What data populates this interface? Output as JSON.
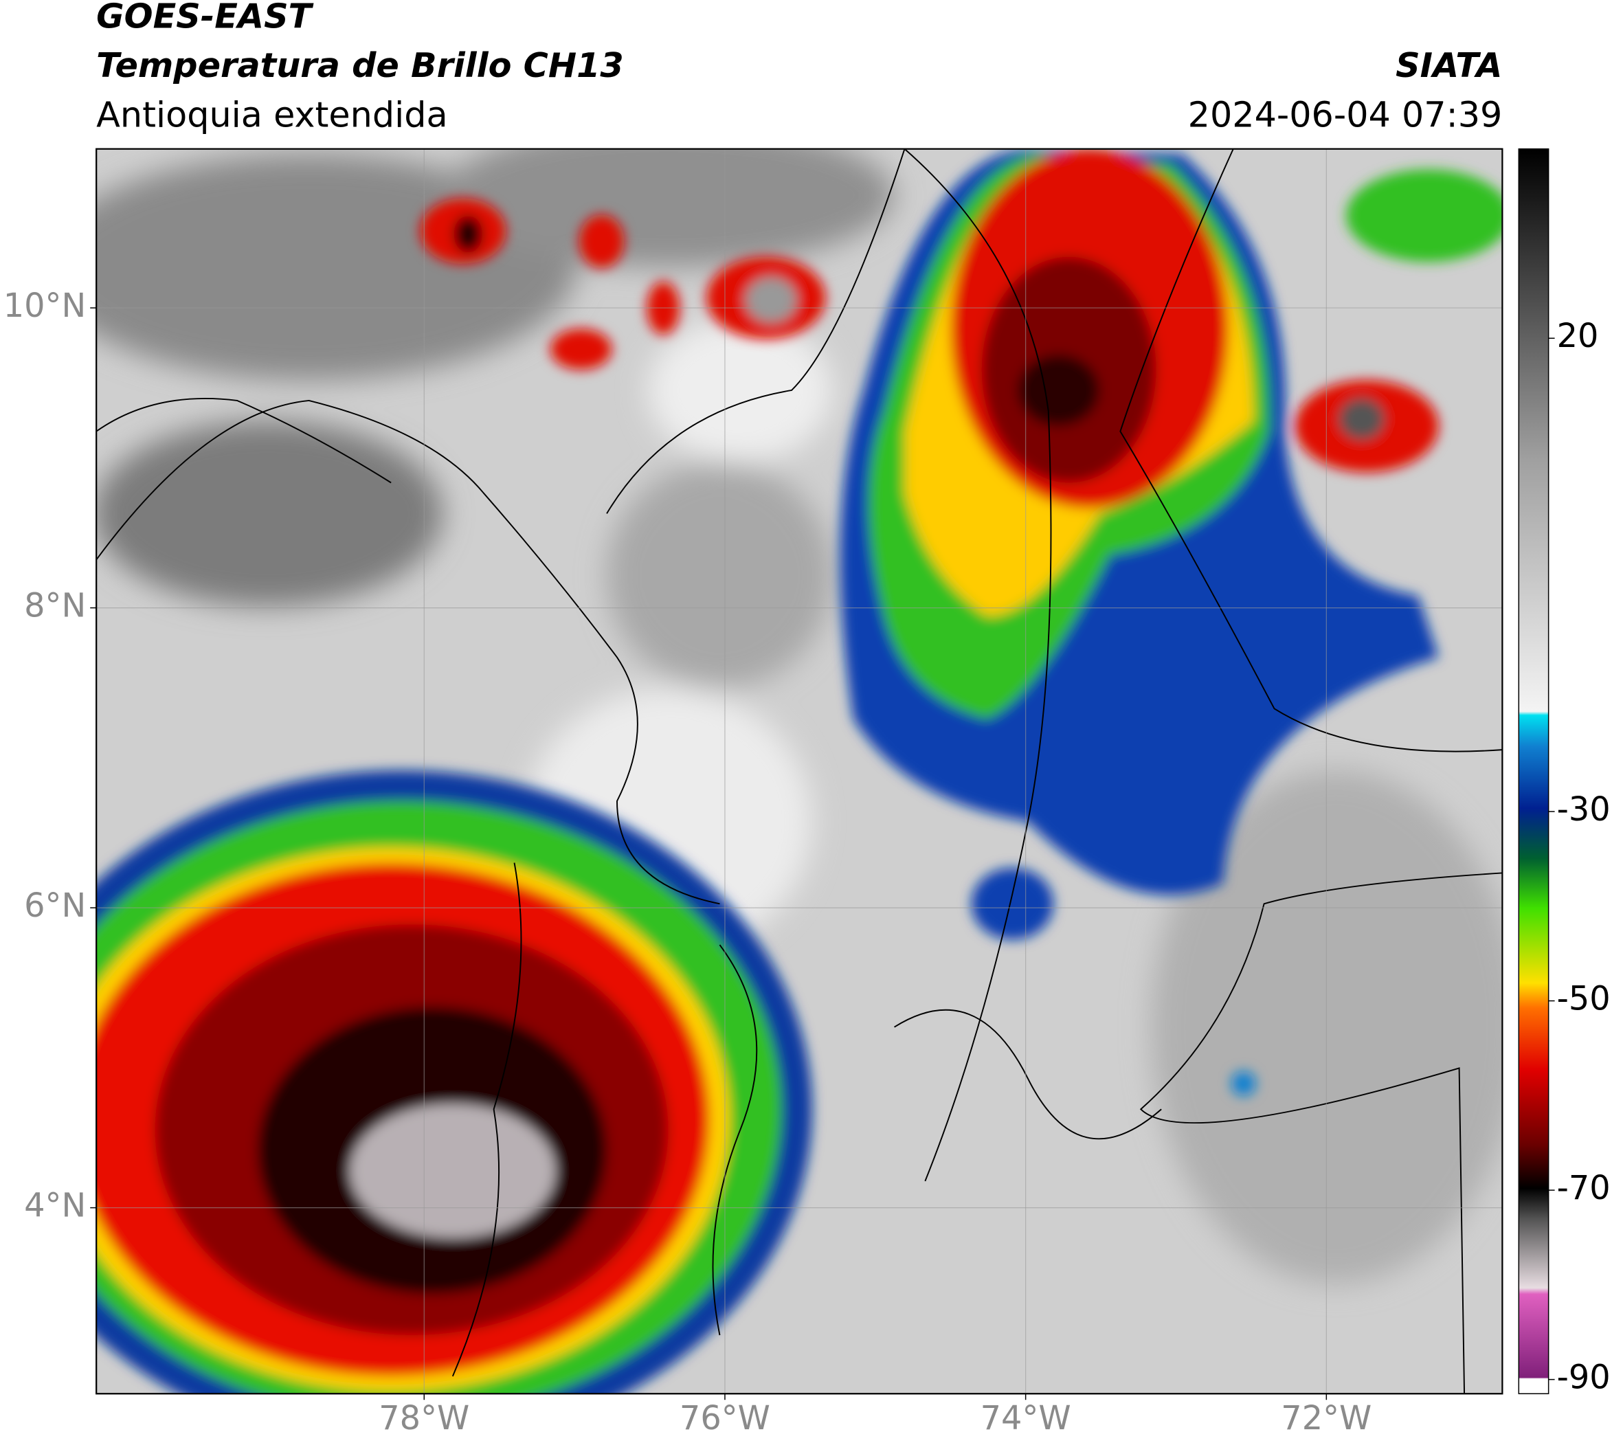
{
  "chart_data": {
    "type": "map",
    "title": "GOES-EAST",
    "subtitle": "Temperatura de Brillo CH13",
    "region": "Antioquia extendida",
    "source": "SIATA",
    "timestamp": "2024-06-04 07:39",
    "xlim": [
      -80.18,
      -70.83
    ],
    "ylim": [
      2.76,
      11.06
    ],
    "xticks": [
      {
        "value": -78,
        "label": "78°W"
      },
      {
        "value": -76,
        "label": "76°W"
      },
      {
        "value": -74,
        "label": "74°W"
      },
      {
        "value": -72,
        "label": "72°W"
      }
    ],
    "yticks": [
      {
        "value": 10,
        "label": "10°N"
      },
      {
        "value": 8,
        "label": "8°N"
      },
      {
        "value": 6,
        "label": "6°N"
      },
      {
        "value": 4,
        "label": "4°N"
      }
    ],
    "grid": true,
    "colorbar": {
      "lim": [
        -91.5,
        40
      ],
      "ticks": [
        20,
        -30,
        -50,
        -70,
        -90
      ]
    }
  }
}
